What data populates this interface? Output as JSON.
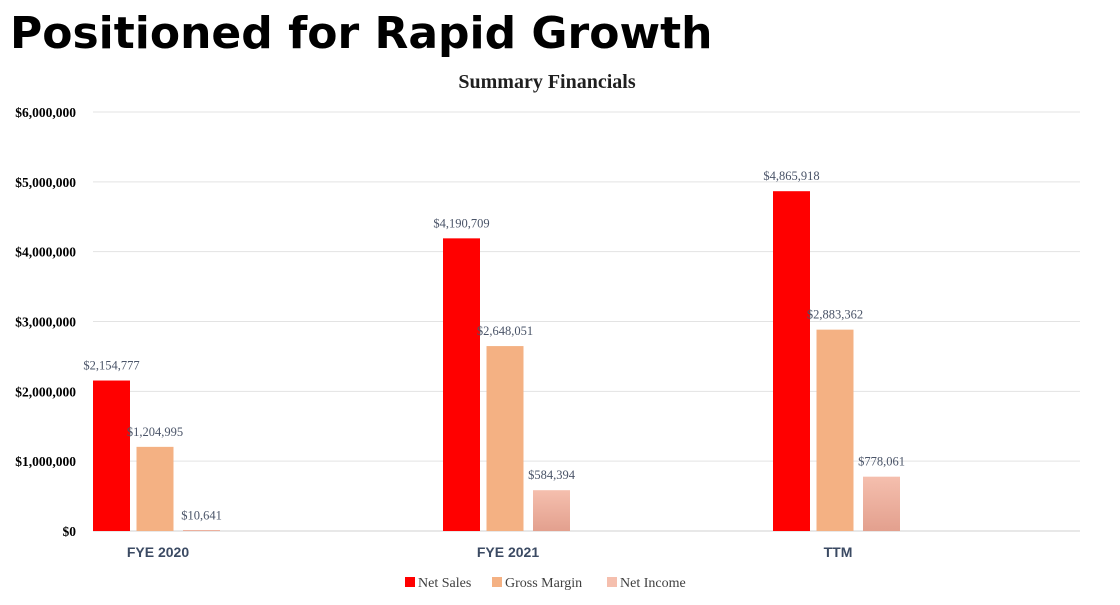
{
  "slide": {
    "title": "Positioned for Rapid Growth"
  },
  "colors": {
    "net_sales": "#ff0000",
    "gross_margin": "#f4b183",
    "net_income_top": "#f5bfae",
    "net_income_bottom": "#e3a08e"
  },
  "chart_data": {
    "type": "bar",
    "title": "Summary Financials",
    "xlabel": "",
    "ylabel": "",
    "categories": [
      "FYE 2020",
      "FYE 2021",
      "TTM"
    ],
    "series": [
      {
        "name": "Net Sales",
        "values": [
          2154777,
          4190709,
          4865918
        ],
        "labels": [
          "$2,154,777",
          "$4,190,709",
          "$4,865,918"
        ]
      },
      {
        "name": "Gross Margin",
        "values": [
          1204995,
          2648051,
          2883362
        ],
        "labels": [
          "$1,204,995",
          "$2,648,051",
          "$2,883,362"
        ]
      },
      {
        "name": "Net Income",
        "values": [
          10641,
          584394,
          778061
        ],
        "labels": [
          "$10,641",
          "$584,394",
          "$778,061"
        ]
      }
    ],
    "ylim": [
      0,
      6000000
    ],
    "yticks": [
      0,
      1000000,
      2000000,
      3000000,
      4000000,
      5000000,
      6000000
    ],
    "ytick_labels": [
      "$0",
      "$1,000,000",
      "$2,000,000",
      "$3,000,000",
      "$4,000,000",
      "$5,000,000",
      "$6,000,000"
    ],
    "grid": true,
    "legend_position": "bottom"
  }
}
